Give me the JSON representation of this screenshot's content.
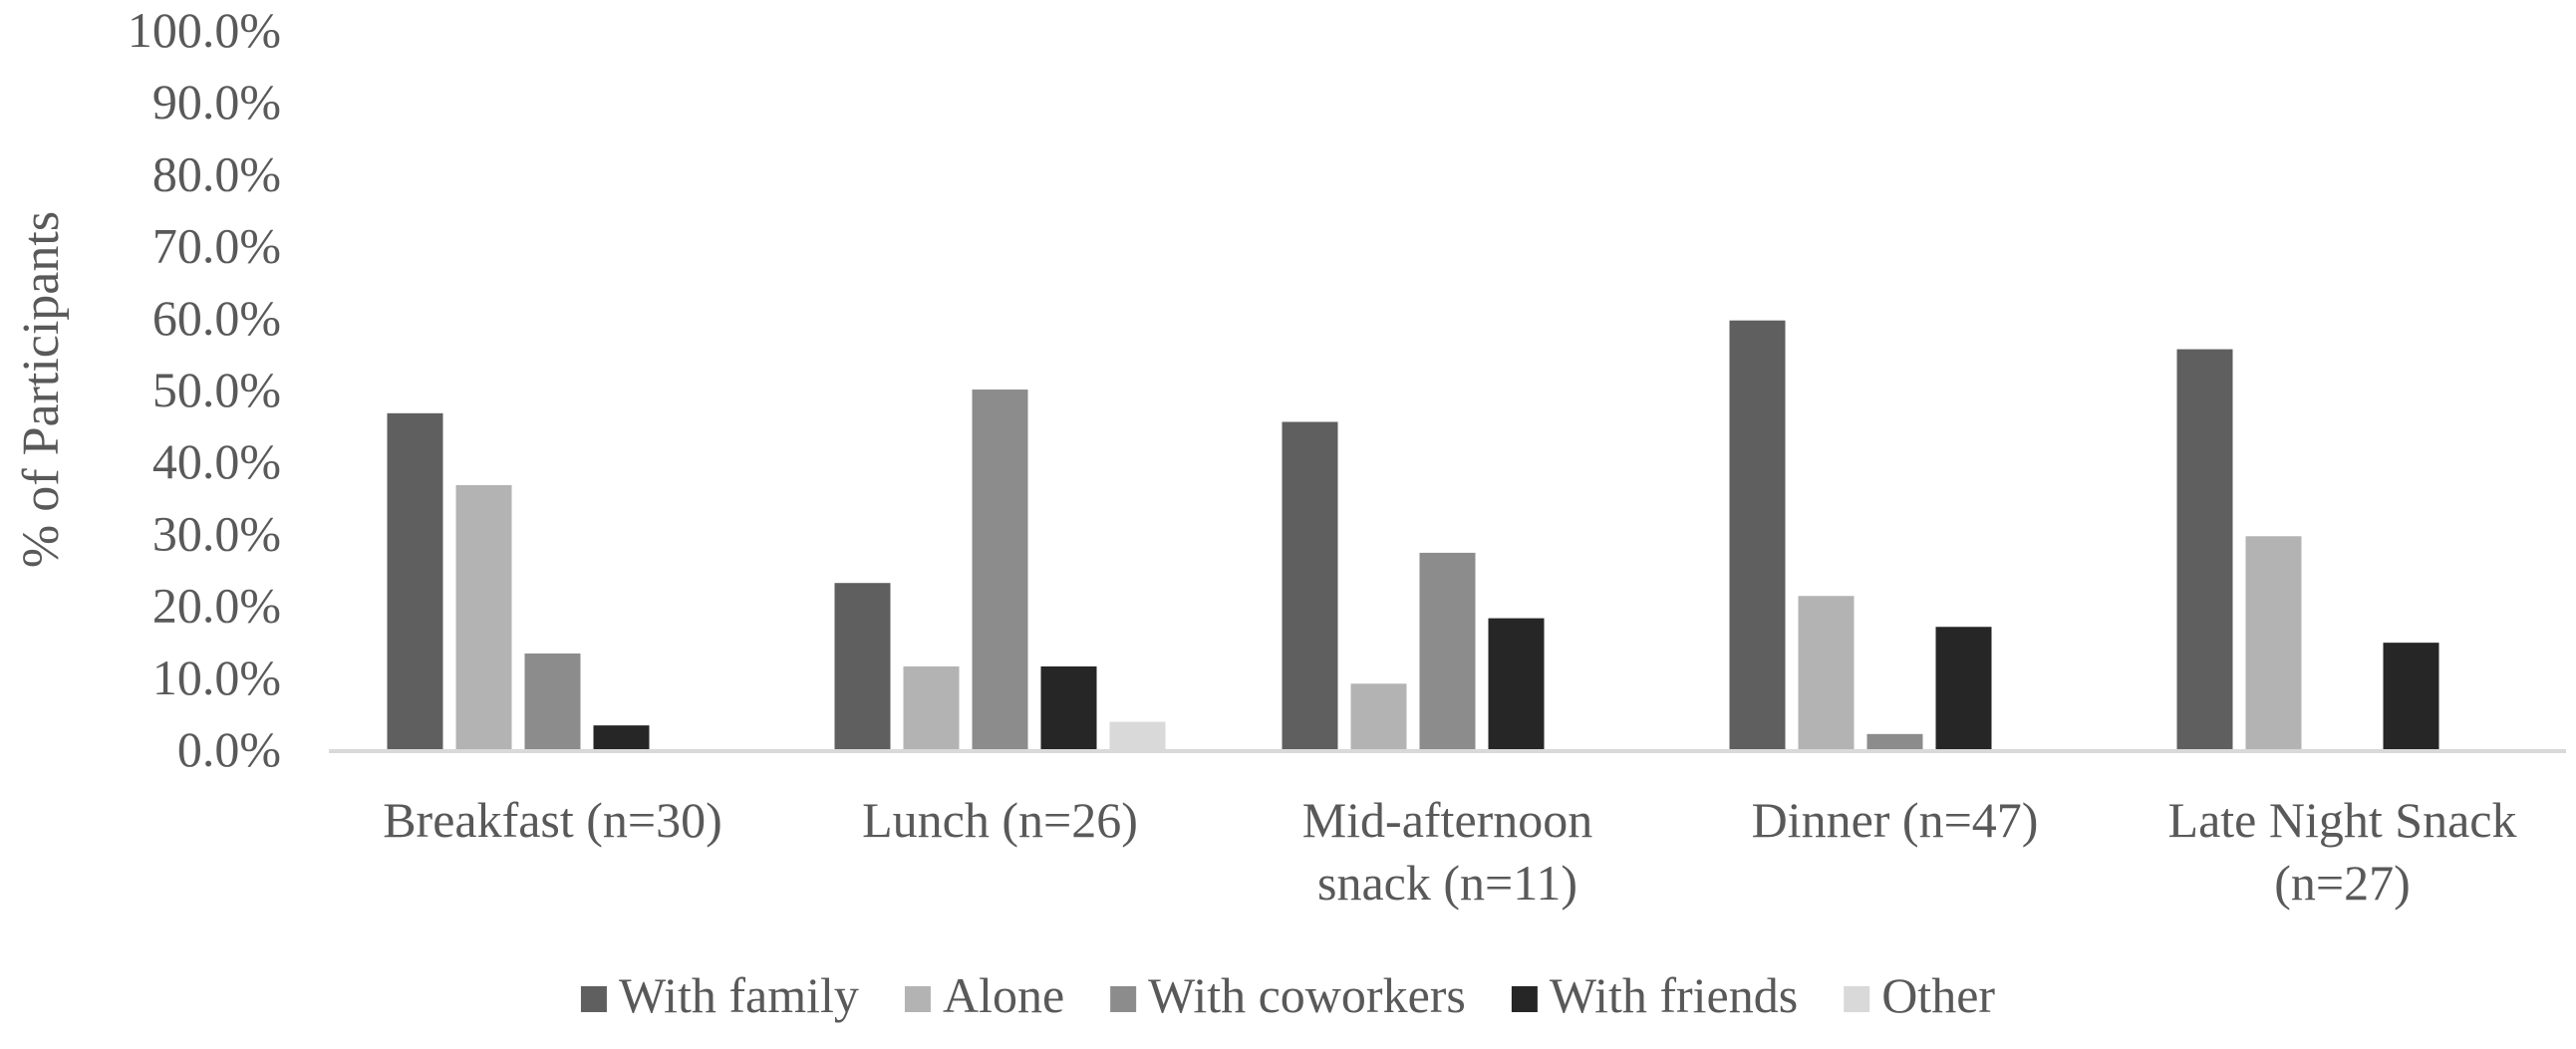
{
  "chart_data": {
    "type": "bar",
    "title": "",
    "xlabel": "",
    "ylabel": "% of Participants",
    "ylim": [
      0,
      100
    ],
    "y_ticks": [
      0,
      10,
      20,
      30,
      40,
      50,
      60,
      70,
      80,
      90,
      100
    ],
    "y_tick_labels": [
      "0.0%",
      "10.0%",
      "20.0%",
      "30.0%",
      "40.0%",
      "50.0%",
      "60.0%",
      "70.0%",
      "80.0%",
      "90.0%",
      "100.0%"
    ],
    "grid": false,
    "legend_position": "bottom",
    "categories": [
      [
        "Breakfast (n=30)"
      ],
      [
        "Lunch (n=26)"
      ],
      [
        "Mid-afternoon",
        "snack (n=11)"
      ],
      [
        "Dinner (n=47)"
      ],
      [
        "Late Night Snack",
        "(n=27)"
      ]
    ],
    "series": [
      {
        "name": "With family",
        "color": "#5f5f5f",
        "values": [
          46.7,
          23.1,
          45.5,
          59.6,
          55.6
        ]
      },
      {
        "name": "Alone",
        "color": "#b3b3b3",
        "values": [
          36.7,
          11.5,
          9.1,
          21.3,
          29.6
        ]
      },
      {
        "name": "With coworkers",
        "color": "#8c8c8c",
        "values": [
          13.3,
          50.0,
          27.3,
          2.1,
          0
        ]
      },
      {
        "name": "With friends",
        "color": "#262626",
        "values": [
          3.3,
          11.5,
          18.2,
          17.0,
          14.8
        ]
      },
      {
        "name": "Other",
        "color": "#d9d9d9",
        "values": [
          0,
          3.8,
          0,
          0,
          0
        ]
      }
    ]
  }
}
